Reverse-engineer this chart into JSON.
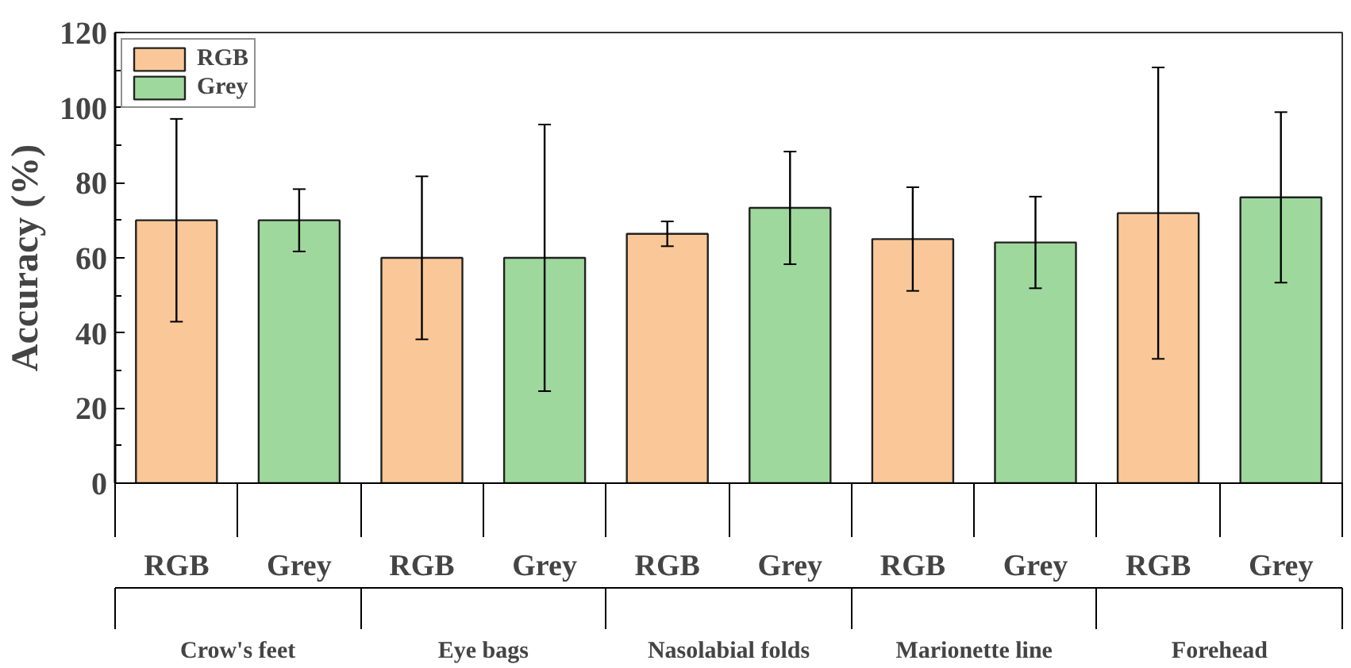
{
  "chart_data": {
    "type": "bar",
    "ylabel": "Accuracy (%)",
    "categories": [
      "Crow's feet",
      "Eye bags",
      "Nasolabial folds",
      "Marionette line",
      "Forehead"
    ],
    "series": [
      {
        "name": "RGB",
        "color": "#fac898",
        "values": [
          70,
          60,
          66.4,
          65,
          71.9
        ],
        "errors": [
          27,
          21.7,
          3.3,
          13.8,
          38.8
        ]
      },
      {
        "name": "Grey",
        "color": "#9fd89d",
        "values": [
          70,
          60,
          73.3,
          64.1,
          76.1
        ],
        "errors": [
          8.3,
          35.5,
          15,
          12.2,
          22.7
        ]
      }
    ],
    "ylim": [
      0,
      120
    ],
    "yticks": [
      0,
      20,
      40,
      60,
      80,
      100,
      120
    ],
    "grid": false,
    "legend": "top left"
  }
}
